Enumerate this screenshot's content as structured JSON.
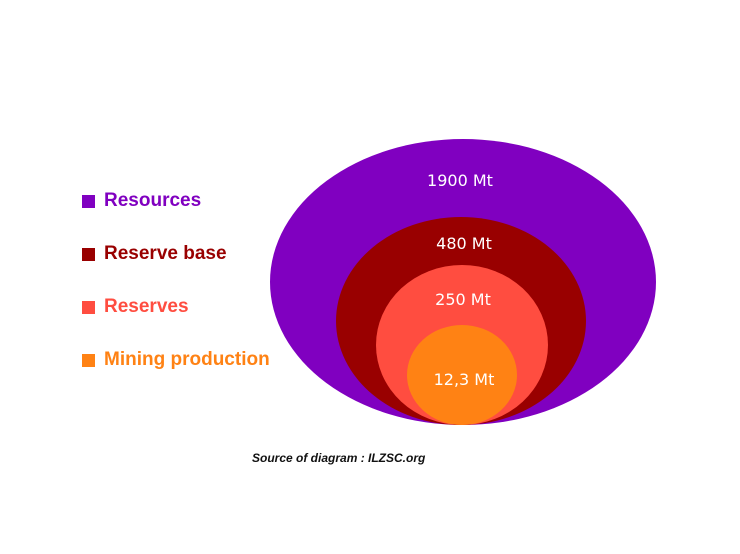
{
  "legend": {
    "items": [
      {
        "label": "Resources",
        "color": "#8000C0"
      },
      {
        "label": "Reserve base",
        "color": "#990000"
      },
      {
        "label": "Reserves",
        "color": "#FF4D40"
      },
      {
        "label": "Mining production",
        "color": "#FF8214"
      }
    ]
  },
  "rings": [
    {
      "name": "Resources",
      "value": "1900 Mt",
      "color": "#8000C0"
    },
    {
      "name": "Reserve base",
      "value": "480 Mt",
      "color": "#990000"
    },
    {
      "name": "Reserves",
      "value": "250 Mt",
      "color": "#FF4D40"
    },
    {
      "name": "Mining production",
      "value": "12,3 Mt",
      "color": "#FF8214"
    }
  ],
  "source": "Source of diagram : ILZSC.org"
}
